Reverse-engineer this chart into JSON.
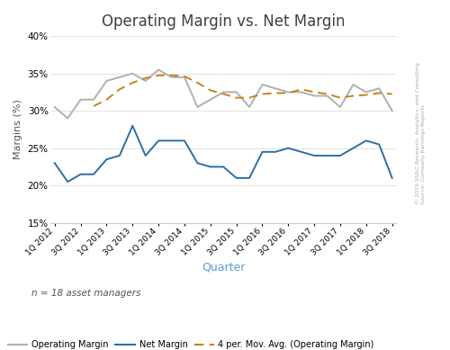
{
  "title": "Operating Margin vs. Net Margin",
  "xlabel": "Quarter",
  "ylabel": "Margins (%)",
  "ylim": [
    15,
    40
  ],
  "yticks": [
    15,
    20,
    25,
    30,
    35,
    40
  ],
  "operating_color": "#b0b0b0",
  "net_color": "#2e6da4",
  "mavg_color": "#c8821a",
  "background_color": "#ffffff",
  "annotation": "n = 18 asset managers",
  "watermark_line1": "© 2019 SS&C Research, Analytics, and Consulting",
  "watermark_line2": "Source: Company Earnings Reports",
  "operating_margin": [
    30.5,
    29.0,
    31.5,
    31.5,
    34.0,
    34.5,
    35.0,
    34.0,
    35.5,
    34.5,
    34.5,
    30.5,
    31.5,
    32.5,
    32.5,
    30.5,
    33.5,
    33.0,
    32.5,
    32.5,
    32.0,
    32.0,
    30.5,
    33.5,
    32.5,
    33.0,
    30.0
  ],
  "net_margin": [
    23.0,
    20.5,
    21.5,
    21.5,
    23.5,
    24.0,
    28.0,
    24.0,
    26.0,
    26.0,
    26.0,
    23.0,
    22.5,
    22.5,
    21.0,
    21.0,
    24.5,
    24.5,
    25.0,
    24.5,
    24.0,
    24.0,
    24.0,
    25.0,
    26.0,
    25.5,
    21.0
  ]
}
